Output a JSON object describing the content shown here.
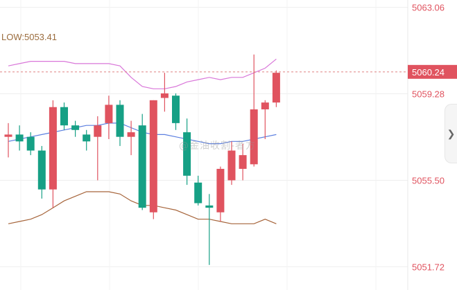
{
  "indicator_label": "LOW:5053.41",
  "watermark": "@金油收割-者方",
  "colors": {
    "up": "#e0535f",
    "down": "#16a085",
    "upper_band": "#d977d9",
    "middle_band": "#5b7fe0",
    "lower_band": "#a6643a",
    "price_line": "#e08080",
    "price_label_bg": "#e0535f",
    "axis_text": "#e0535f"
  },
  "nav_icon": "chevron-right-icon",
  "chart_data": {
    "type": "candlestick",
    "ylim": [
      5051.4,
      5063.2
    ],
    "ytick_labels": [
      "5063.06",
      "5059.28",
      "5055.50",
      "5051.72"
    ],
    "current_price_label": "5060.24",
    "current_price": 5060.24,
    "candles": [
      {
        "o": 5057.4,
        "h": 5058.0,
        "l": 5056.5,
        "c": 5057.5
      },
      {
        "o": 5057.5,
        "h": 5057.9,
        "l": 5056.8,
        "c": 5057.2
      },
      {
        "o": 5057.4,
        "h": 5057.6,
        "l": 5056.6,
        "c": 5056.8
      },
      {
        "o": 5056.8,
        "h": 5057.0,
        "l": 5054.7,
        "c": 5055.1
      },
      {
        "o": 5055.1,
        "h": 5059.0,
        "l": 5054.3,
        "c": 5058.7
      },
      {
        "o": 5058.7,
        "h": 5058.9,
        "l": 5057.7,
        "c": 5057.9
      },
      {
        "o": 5057.9,
        "h": 5058.1,
        "l": 5057.4,
        "c": 5057.7
      },
      {
        "o": 5057.5,
        "h": 5057.7,
        "l": 5056.8,
        "c": 5057.2
      },
      {
        "o": 5057.4,
        "h": 5058.3,
        "l": 5055.5,
        "c": 5057.9
      },
      {
        "o": 5058.0,
        "h": 5059.2,
        "l": 5057.3,
        "c": 5058.8
      },
      {
        "o": 5058.8,
        "h": 5059.0,
        "l": 5057.0,
        "c": 5057.4
      },
      {
        "o": 5057.4,
        "h": 5058.1,
        "l": 5056.6,
        "c": 5057.6
      },
      {
        "o": 5057.9,
        "h": 5058.4,
        "l": 5054.2,
        "c": 5054.3
      },
      {
        "o": 5054.1,
        "h": 5059.0,
        "l": 5053.8,
        "c": 5059.0
      },
      {
        "o": 5059.1,
        "h": 5060.2,
        "l": 5058.5,
        "c": 5059.3
      },
      {
        "o": 5059.2,
        "h": 5059.3,
        "l": 5057.7,
        "c": 5058.0
      },
      {
        "o": 5057.6,
        "h": 5058.2,
        "l": 5055.3,
        "c": 5055.7
      },
      {
        "o": 5055.4,
        "h": 5055.7,
        "l": 5054.4,
        "c": 5054.5
      },
      {
        "o": 5054.4,
        "h": 5054.9,
        "l": 5051.8,
        "c": 5054.3
      },
      {
        "o": 5054.1,
        "h": 5056.1,
        "l": 5053.7,
        "c": 5056.0
      },
      {
        "o": 5055.5,
        "h": 5057.2,
        "l": 5055.3,
        "c": 5056.8
      },
      {
        "o": 5056.0,
        "h": 5057.1,
        "l": 5055.5,
        "c": 5056.6
      },
      {
        "o": 5056.2,
        "h": 5061.0,
        "l": 5056.1,
        "c": 5058.6
      },
      {
        "o": 5058.6,
        "h": 5059.0,
        "l": 5057.3,
        "c": 5058.9
      },
      {
        "o": 5058.9,
        "h": 5060.3,
        "l": 5058.7,
        "c": 5060.2
      }
    ],
    "bands": {
      "upper": [
        5060.5,
        5060.6,
        5060.7,
        5060.7,
        5060.7,
        5060.7,
        5060.6,
        5060.6,
        5060.6,
        5060.6,
        5060.5,
        5060.0,
        5059.6,
        5059.5,
        5059.5,
        5059.6,
        5059.8,
        5059.9,
        5060.0,
        5059.9,
        5060.0,
        5060.0,
        5060.2,
        5060.4,
        5060.8
      ],
      "middle": [
        5057.2,
        5057.3,
        5057.4,
        5057.5,
        5057.6,
        5057.7,
        5057.8,
        5057.9,
        5057.9,
        5058.0,
        5058.0,
        5057.8,
        5057.6,
        5057.5,
        5057.5,
        5057.4,
        5057.3,
        5057.2,
        5057.1,
        5057.1,
        5057.2,
        5057.2,
        5057.3,
        5057.4,
        5057.5
      ],
      "lower": [
        5053.6,
        5053.7,
        5053.8,
        5054.0,
        5054.3,
        5054.6,
        5054.8,
        5055.0,
        5055.0,
        5055.0,
        5054.9,
        5054.6,
        5054.4,
        5054.4,
        5054.3,
        5054.2,
        5054.0,
        5053.8,
        5053.8,
        5053.7,
        5053.6,
        5053.6,
        5053.6,
        5053.8,
        5053.6
      ]
    },
    "grid": true,
    "xlabel": "",
    "ylabel": ""
  }
}
